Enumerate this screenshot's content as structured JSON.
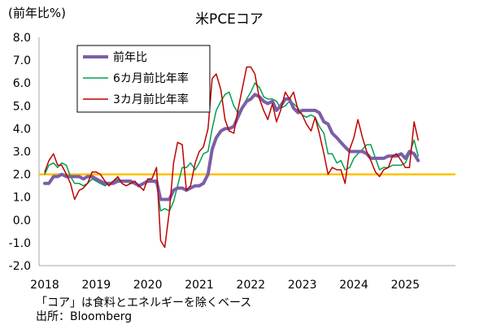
{
  "chart_data": {
    "type": "line",
    "title": "米PCEコア",
    "ylabel": "(前年比%)",
    "xlabel": "",
    "ylim": [
      -2.0,
      8.0
    ],
    "yticks": [
      "8.0",
      "7.0",
      "6.0",
      "5.0",
      "4.0",
      "3.0",
      "2.0",
      "1.0",
      "0.0",
      "-1.0",
      "-2.0"
    ],
    "xlim": [
      2018.0,
      2025.42
    ],
    "xticks": [
      "2018",
      "2019",
      "2020",
      "2021",
      "2022",
      "2023",
      "2024",
      "2025"
    ],
    "grid": false,
    "legend_position": "top-left",
    "reference_line": {
      "y": 2.0,
      "color": "#ffc000"
    },
    "series": [
      {
        "name": "前年比",
        "color": "#7b5ea7",
        "width": 4,
        "x": [
          2018.0,
          2018.08,
          2018.17,
          2018.25,
          2018.33,
          2018.42,
          2018.5,
          2018.58,
          2018.67,
          2018.75,
          2018.83,
          2018.92,
          2019.0,
          2019.08,
          2019.17,
          2019.25,
          2019.33,
          2019.42,
          2019.5,
          2019.58,
          2019.67,
          2019.75,
          2019.83,
          2019.92,
          2020.0,
          2020.08,
          2020.17,
          2020.25,
          2020.33,
          2020.42,
          2020.5,
          2020.58,
          2020.67,
          2020.75,
          2020.83,
          2020.92,
          2021.0,
          2021.08,
          2021.17,
          2021.25,
          2021.33,
          2021.42,
          2021.5,
          2021.58,
          2021.67,
          2021.75,
          2021.83,
          2021.92,
          2022.0,
          2022.08,
          2022.17,
          2022.25,
          2022.33,
          2022.42,
          2022.5,
          2022.58,
          2022.67,
          2022.75,
          2022.83,
          2022.92,
          2023.0,
          2023.08,
          2023.17,
          2023.25,
          2023.33,
          2023.42,
          2023.5,
          2023.58,
          2023.67,
          2023.75,
          2023.83,
          2023.92,
          2024.0,
          2024.08,
          2024.17,
          2024.25,
          2024.33,
          2024.42,
          2024.5,
          2024.58,
          2024.67,
          2024.75,
          2024.83,
          2024.92,
          2025.0,
          2025.08,
          2025.17,
          2025.25
        ],
        "values": [
          1.6,
          1.6,
          1.9,
          1.9,
          2.0,
          1.9,
          1.9,
          1.9,
          1.9,
          1.8,
          1.9,
          1.9,
          1.8,
          1.7,
          1.6,
          1.6,
          1.6,
          1.7,
          1.7,
          1.7,
          1.7,
          1.6,
          1.5,
          1.6,
          1.7,
          1.7,
          1.7,
          0.9,
          0.9,
          0.9,
          1.3,
          1.4,
          1.4,
          1.3,
          1.4,
          1.5,
          1.5,
          1.6,
          2.0,
          3.1,
          3.6,
          3.9,
          4.0,
          4.0,
          4.1,
          4.5,
          4.9,
          5.2,
          5.3,
          5.5,
          5.4,
          5.2,
          5.1,
          5.2,
          4.8,
          5.0,
          5.3,
          5.3,
          4.9,
          4.7,
          4.8,
          4.8,
          4.8,
          4.8,
          4.7,
          4.3,
          4.2,
          3.8,
          3.6,
          3.4,
          3.2,
          3.0,
          3.0,
          3.0,
          3.0,
          2.9,
          2.7,
          2.7,
          2.7,
          2.7,
          2.8,
          2.8,
          2.8,
          2.9,
          2.7,
          3.0,
          2.9,
          2.6
        ]
      },
      {
        "name": "6カ月前比年率",
        "color": "#00a050",
        "width": 1.5,
        "x": [
          2018.0,
          2018.08,
          2018.17,
          2018.25,
          2018.33,
          2018.42,
          2018.5,
          2018.58,
          2018.67,
          2018.75,
          2018.83,
          2018.92,
          2019.0,
          2019.08,
          2019.17,
          2019.25,
          2019.33,
          2019.42,
          2019.5,
          2019.58,
          2019.67,
          2019.75,
          2019.83,
          2019.92,
          2020.0,
          2020.08,
          2020.17,
          2020.25,
          2020.33,
          2020.42,
          2020.5,
          2020.58,
          2020.67,
          2020.75,
          2020.83,
          2020.92,
          2021.0,
          2021.08,
          2021.17,
          2021.25,
          2021.33,
          2021.42,
          2021.5,
          2021.58,
          2021.67,
          2021.75,
          2021.83,
          2021.92,
          2022.0,
          2022.08,
          2022.17,
          2022.25,
          2022.33,
          2022.42,
          2022.5,
          2022.58,
          2022.67,
          2022.75,
          2022.83,
          2022.92,
          2023.0,
          2023.08,
          2023.17,
          2023.25,
          2023.33,
          2023.42,
          2023.5,
          2023.58,
          2023.67,
          2023.75,
          2023.83,
          2023.92,
          2024.0,
          2024.08,
          2024.17,
          2024.25,
          2024.33,
          2024.42,
          2024.5,
          2024.58,
          2024.67,
          2024.75,
          2024.83,
          2024.92,
          2025.0,
          2025.08,
          2025.17,
          2025.25
        ],
        "values": [
          2.0,
          2.4,
          2.5,
          2.3,
          2.5,
          2.4,
          1.9,
          1.6,
          1.6,
          1.5,
          1.6,
          1.8,
          1.7,
          1.6,
          1.5,
          1.6,
          1.7,
          1.8,
          1.7,
          1.7,
          1.6,
          1.6,
          1.5,
          1.6,
          1.7,
          1.7,
          1.6,
          0.4,
          0.5,
          0.4,
          0.8,
          1.5,
          2.3,
          2.3,
          2.5,
          2.2,
          2.5,
          2.9,
          3.0,
          4.0,
          4.8,
          5.2,
          5.5,
          5.6,
          5.0,
          4.7,
          4.9,
          5.3,
          5.6,
          6.0,
          5.8,
          5.4,
          5.3,
          5.3,
          5.2,
          4.9,
          5.0,
          5.2,
          5.1,
          4.9,
          4.6,
          4.5,
          4.6,
          4.5,
          4.1,
          3.8,
          2.9,
          2.9,
          2.5,
          2.6,
          2.2,
          2.3,
          2.7,
          2.9,
          3.1,
          3.3,
          3.3,
          2.7,
          2.2,
          2.3,
          2.3,
          2.4,
          2.4,
          2.4,
          2.5,
          2.9,
          3.5,
          2.8
        ]
      },
      {
        "name": "3カ月前比年率",
        "color": "#c00000",
        "width": 1.5,
        "x": [
          2018.0,
          2018.08,
          2018.17,
          2018.25,
          2018.33,
          2018.42,
          2018.5,
          2018.58,
          2018.67,
          2018.75,
          2018.83,
          2018.92,
          2019.0,
          2019.08,
          2019.17,
          2019.25,
          2019.33,
          2019.42,
          2019.5,
          2019.58,
          2019.67,
          2019.75,
          2019.83,
          2019.92,
          2020.0,
          2020.08,
          2020.17,
          2020.25,
          2020.33,
          2020.42,
          2020.5,
          2020.58,
          2020.67,
          2020.75,
          2020.83,
          2020.92,
          2021.0,
          2021.08,
          2021.17,
          2021.25,
          2021.33,
          2021.42,
          2021.5,
          2021.58,
          2021.67,
          2021.75,
          2021.83,
          2021.92,
          2022.0,
          2022.08,
          2022.17,
          2022.25,
          2022.33,
          2022.42,
          2022.5,
          2022.58,
          2022.67,
          2022.75,
          2022.83,
          2022.92,
          2023.0,
          2023.08,
          2023.17,
          2023.25,
          2023.33,
          2023.42,
          2023.5,
          2023.58,
          2023.67,
          2023.75,
          2023.83,
          2023.92,
          2024.0,
          2024.08,
          2024.17,
          2024.25,
          2024.33,
          2024.42,
          2024.5,
          2024.58,
          2024.67,
          2024.75,
          2024.83,
          2024.92,
          2025.0,
          2025.08,
          2025.17,
          2025.25
        ],
        "values": [
          2.1,
          2.6,
          2.9,
          2.4,
          2.4,
          2.0,
          1.6,
          0.9,
          1.3,
          1.4,
          1.6,
          2.1,
          2.1,
          2.0,
          1.7,
          1.5,
          1.7,
          1.9,
          1.6,
          1.5,
          1.6,
          1.7,
          1.5,
          1.3,
          1.8,
          1.8,
          2.3,
          -0.9,
          -1.2,
          0.4,
          2.5,
          3.4,
          3.3,
          1.3,
          1.5,
          2.5,
          3.0,
          3.2,
          4.0,
          6.2,
          6.4,
          5.7,
          4.4,
          3.9,
          3.8,
          4.8,
          5.7,
          6.7,
          6.7,
          6.4,
          5.3,
          4.8,
          4.4,
          5.1,
          4.3,
          4.8,
          5.6,
          5.3,
          5.6,
          4.8,
          4.6,
          4.2,
          3.9,
          4.5,
          3.8,
          2.9,
          2.0,
          2.3,
          2.2,
          2.2,
          1.6,
          3.1,
          3.6,
          4.4,
          3.6,
          3.0,
          2.6,
          2.1,
          1.9,
          2.2,
          2.3,
          2.8,
          2.9,
          2.6,
          2.3,
          2.3,
          4.3,
          3.5
        ]
      }
    ]
  },
  "footnote": "「コア」は食料とエネルギーを除くベース",
  "source": "出所：Bloomberg"
}
